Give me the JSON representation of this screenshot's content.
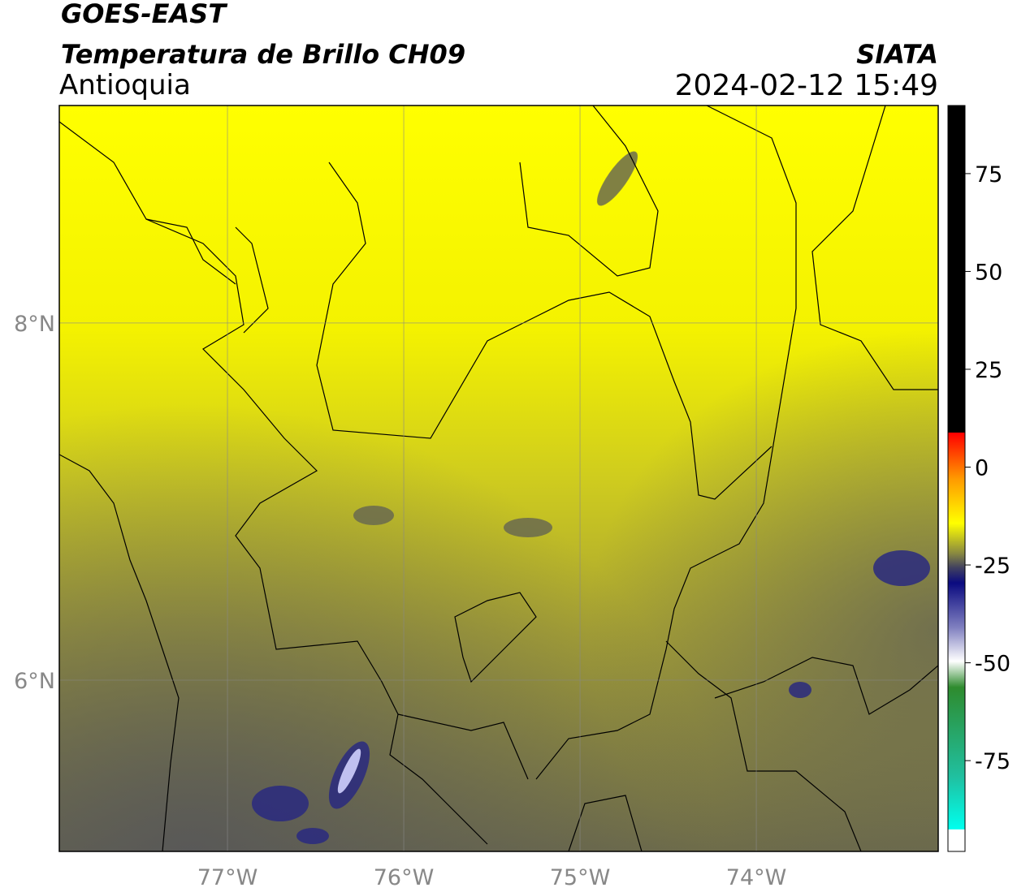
{
  "header": {
    "title": "GOES-EAST",
    "subtitle": "Temperatura de Brillo CH09",
    "region": "Antioquia",
    "source": "SIATA",
    "timestamp": "2024-02-12 15:49"
  },
  "map": {
    "lon_range": [
      -77.954,
      -72.968
    ],
    "lat_range": [
      5.041,
      9.218
    ],
    "lon_ticks": [
      {
        "value": -77,
        "label": "77°W"
      },
      {
        "value": -76,
        "label": "76°W"
      },
      {
        "value": -75,
        "label": "75°W"
      },
      {
        "value": -74,
        "label": "74°W"
      }
    ],
    "lat_ticks": [
      {
        "value": 8,
        "label": "8°N"
      },
      {
        "value": 6,
        "label": "6°N"
      }
    ]
  },
  "colorbar": {
    "range": [
      -98.2,
      92.4
    ],
    "ticks": [
      75,
      50,
      25,
      0,
      -25,
      -50,
      -75
    ]
  }
}
